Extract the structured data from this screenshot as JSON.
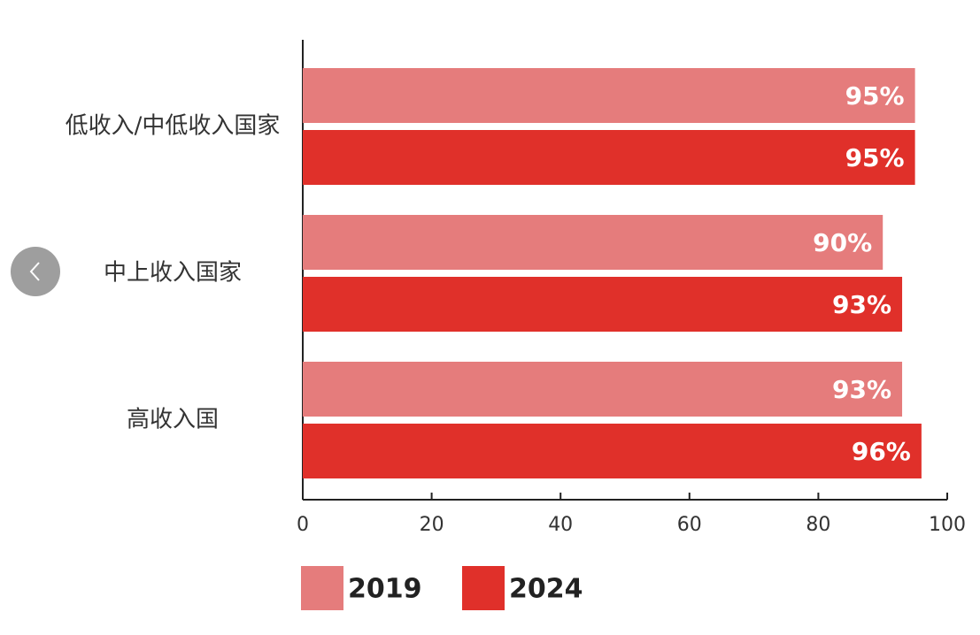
{
  "chart_data": {
    "type": "bar",
    "orientation": "horizontal",
    "categories": [
      "低收入/中低收入国家",
      "中上收入国家",
      "高收入国"
    ],
    "series": [
      {
        "name": "2019",
        "color": "#e57c7c",
        "values": [
          95,
          90,
          93
        ],
        "value_labels": [
          "95%",
          "90%",
          "93%"
        ]
      },
      {
        "name": "2024",
        "color": "#e0302a",
        "values": [
          95,
          93,
          96
        ],
        "value_labels": [
          "95%",
          "93%",
          "96%"
        ]
      }
    ],
    "xlim": [
      0,
      100
    ],
    "xticks": [
      0,
      20,
      40,
      60,
      80,
      100
    ]
  }
}
